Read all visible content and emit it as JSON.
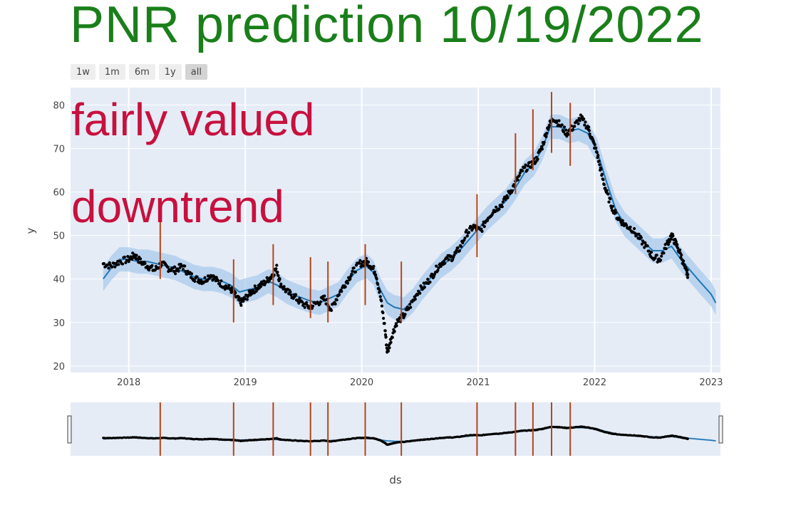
{
  "title": "PNR prediction 10/19/2022",
  "range_buttons": [
    {
      "label": "1w",
      "active": false
    },
    {
      "label": "1m",
      "active": false
    },
    {
      "label": "6m",
      "active": false
    },
    {
      "label": "1y",
      "active": false
    },
    {
      "label": "all",
      "active": true
    }
  ],
  "annotations": [
    "fairly valued",
    "downtrend"
  ],
  "colors": {
    "title": "#1a7f1a",
    "annotation": "#c8103e",
    "plot_bg": "#e5ecf6",
    "grid": "#ffffff",
    "forecast_line": "#1f77b4",
    "uncertainty_band": "#a9cbec",
    "actual_points": "#000000",
    "changepoints": "#b5441a"
  },
  "chart_data": {
    "type": "scatter",
    "xlabel": "ds",
    "ylabel": "y",
    "x_ticks": [
      "2018",
      "2019",
      "2020",
      "2021",
      "2022",
      "2023"
    ],
    "y_ticks": [
      20,
      30,
      40,
      50,
      60,
      70,
      80
    ],
    "xlim": [
      2017.5,
      2023.08
    ],
    "ylim": [
      18.5,
      84
    ],
    "grid": true,
    "legend": "none",
    "range_slider": true,
    "series": [
      {
        "kind": "actual",
        "style": "black markers",
        "points": [
          [
            2017.78,
            43.5
          ],
          [
            2017.85,
            43.0
          ],
          [
            2017.92,
            44.0
          ],
          [
            2018.0,
            44.5
          ],
          [
            2018.05,
            45.5
          ],
          [
            2018.1,
            44.0
          ],
          [
            2018.16,
            43.0
          ],
          [
            2018.22,
            42.0
          ],
          [
            2018.28,
            43.5
          ],
          [
            2018.34,
            42.5
          ],
          [
            2018.4,
            42.0
          ],
          [
            2018.46,
            43.0
          ],
          [
            2018.52,
            41.0
          ],
          [
            2018.58,
            40.0
          ],
          [
            2018.64,
            39.5
          ],
          [
            2018.7,
            41.0
          ],
          [
            2018.76,
            39.5
          ],
          [
            2018.82,
            38.5
          ],
          [
            2018.88,
            37.5
          ],
          [
            2018.92,
            36.0
          ],
          [
            2018.96,
            34.5
          ],
          [
            2019.0,
            35.5
          ],
          [
            2019.05,
            37.0
          ],
          [
            2019.1,
            38.0
          ],
          [
            2019.16,
            39.0
          ],
          [
            2019.22,
            40.5
          ],
          [
            2019.27,
            42.5
          ],
          [
            2019.3,
            39.0
          ],
          [
            2019.36,
            37.0
          ],
          [
            2019.42,
            36.0
          ],
          [
            2019.48,
            34.5
          ],
          [
            2019.55,
            33.5
          ],
          [
            2019.62,
            34.5
          ],
          [
            2019.68,
            35.5
          ],
          [
            2019.74,
            33.0
          ],
          [
            2019.8,
            36.5
          ],
          [
            2019.86,
            39.0
          ],
          [
            2019.92,
            41.5
          ],
          [
            2019.98,
            43.5
          ],
          [
            2020.04,
            44.0
          ],
          [
            2020.08,
            43.0
          ],
          [
            2020.12,
            41.5
          ],
          [
            2020.16,
            36.0
          ],
          [
            2020.2,
            28.5
          ],
          [
            2020.22,
            23.0
          ],
          [
            2020.26,
            27.0
          ],
          [
            2020.3,
            30.0
          ],
          [
            2020.36,
            31.5
          ],
          [
            2020.42,
            34.0
          ],
          [
            2020.48,
            37.0
          ],
          [
            2020.54,
            38.5
          ],
          [
            2020.6,
            40.5
          ],
          [
            2020.66,
            43.0
          ],
          [
            2020.72,
            44.5
          ],
          [
            2020.78,
            45.0
          ],
          [
            2020.84,
            47.0
          ],
          [
            2020.9,
            50.5
          ],
          [
            2020.96,
            52.0
          ],
          [
            2021.02,
            51.0
          ],
          [
            2021.08,
            54.0
          ],
          [
            2021.14,
            56.0
          ],
          [
            2021.2,
            57.0
          ],
          [
            2021.26,
            59.5
          ],
          [
            2021.32,
            62.0
          ],
          [
            2021.38,
            65.0
          ],
          [
            2021.44,
            66.0
          ],
          [
            2021.5,
            67.5
          ],
          [
            2021.55,
            70.5
          ],
          [
            2021.6,
            75.0
          ],
          [
            2021.65,
            77.0
          ],
          [
            2021.7,
            75.5
          ],
          [
            2021.76,
            73.5
          ],
          [
            2021.82,
            75.0
          ],
          [
            2021.88,
            77.0
          ],
          [
            2021.94,
            75.0
          ],
          [
            2021.98,
            72.0
          ],
          [
            2022.02,
            69.0
          ],
          [
            2022.06,
            64.0
          ],
          [
            2022.1,
            60.0
          ],
          [
            2022.15,
            56.5
          ],
          [
            2022.2,
            54.0
          ],
          [
            2022.26,
            52.5
          ],
          [
            2022.32,
            51.5
          ],
          [
            2022.38,
            49.5
          ],
          [
            2022.44,
            47.5
          ],
          [
            2022.5,
            45.0
          ],
          [
            2022.56,
            44.5
          ],
          [
            2022.62,
            48.0
          ],
          [
            2022.66,
            50.0
          ],
          [
            2022.7,
            48.0
          ],
          [
            2022.74,
            45.5
          ],
          [
            2022.78,
            42.0
          ],
          [
            2022.8,
            41.0
          ]
        ]
      },
      {
        "kind": "forecast",
        "style": "blue line",
        "points": [
          [
            2017.78,
            40.0
          ],
          [
            2017.85,
            42.5
          ],
          [
            2017.92,
            44.5
          ],
          [
            2018.0,
            44.5
          ],
          [
            2018.08,
            44.0
          ],
          [
            2018.16,
            44.0
          ],
          [
            2018.24,
            43.5
          ],
          [
            2018.32,
            43.0
          ],
          [
            2018.4,
            42.5
          ],
          [
            2018.48,
            41.5
          ],
          [
            2018.56,
            40.5
          ],
          [
            2018.64,
            40.0
          ],
          [
            2018.72,
            40.0
          ],
          [
            2018.8,
            39.5
          ],
          [
            2018.88,
            38.5
          ],
          [
            2018.95,
            37.0
          ],
          [
            2019.02,
            37.5
          ],
          [
            2019.1,
            38.0
          ],
          [
            2019.2,
            39.5
          ],
          [
            2019.28,
            38.5
          ],
          [
            2019.36,
            37.0
          ],
          [
            2019.45,
            36.0
          ],
          [
            2019.55,
            35.0
          ],
          [
            2019.64,
            34.5
          ],
          [
            2019.72,
            35.5
          ],
          [
            2019.8,
            36.5
          ],
          [
            2019.88,
            39.5
          ],
          [
            2019.96,
            42.0
          ],
          [
            2020.04,
            43.0
          ],
          [
            2020.1,
            41.5
          ],
          [
            2020.16,
            37.5
          ],
          [
            2020.22,
            34.5
          ],
          [
            2020.28,
            33.5
          ],
          [
            2020.36,
            33.0
          ],
          [
            2020.44,
            35.0
          ],
          [
            2020.52,
            38.0
          ],
          [
            2020.6,
            40.5
          ],
          [
            2020.68,
            43.0
          ],
          [
            2020.76,
            44.5
          ],
          [
            2020.84,
            46.5
          ],
          [
            2020.92,
            49.0
          ],
          [
            2021.0,
            51.5
          ],
          [
            2021.08,
            54.0
          ],
          [
            2021.16,
            56.0
          ],
          [
            2021.24,
            58.0
          ],
          [
            2021.32,
            61.0
          ],
          [
            2021.4,
            64.5
          ],
          [
            2021.48,
            66.5
          ],
          [
            2021.55,
            70.0
          ],
          [
            2021.62,
            75.0
          ],
          [
            2021.7,
            75.0
          ],
          [
            2021.78,
            74.0
          ],
          [
            2021.86,
            74.5
          ],
          [
            2021.94,
            73.5
          ],
          [
            2022.02,
            69.5
          ],
          [
            2022.1,
            62.5
          ],
          [
            2022.18,
            56.0
          ],
          [
            2022.26,
            52.5
          ],
          [
            2022.34,
            50.5
          ],
          [
            2022.42,
            48.5
          ],
          [
            2022.5,
            46.5
          ],
          [
            2022.58,
            46.5
          ],
          [
            2022.66,
            47.5
          ],
          [
            2022.74,
            44.5
          ],
          [
            2022.82,
            42.0
          ],
          [
            2022.9,
            39.5
          ],
          [
            2023.0,
            36.5
          ],
          [
            2023.04,
            34.5
          ]
        ]
      }
    ],
    "uncertainty_halfwidth": 2.8,
    "changepoints": [
      {
        "x": 2018.27,
        "ymin": 40.0,
        "ymax": 54.0
      },
      {
        "x": 2018.9,
        "ymin": 30.0,
        "ymax": 44.5
      },
      {
        "x": 2019.24,
        "ymin": 34.0,
        "ymax": 48.0
      },
      {
        "x": 2019.56,
        "ymin": 31.0,
        "ymax": 45.0
      },
      {
        "x": 2019.71,
        "ymin": 30.0,
        "ymax": 44.0
      },
      {
        "x": 2020.03,
        "ymin": 34.0,
        "ymax": 48.0
      },
      {
        "x": 2020.34,
        "ymin": 30.0,
        "ymax": 44.0
      },
      {
        "x": 2020.99,
        "ymin": 45.0,
        "ymax": 59.5
      },
      {
        "x": 2021.32,
        "ymin": 59.5,
        "ymax": 73.5
      },
      {
        "x": 2021.47,
        "ymin": 65.0,
        "ymax": 79.0
      },
      {
        "x": 2021.63,
        "ymin": 69.0,
        "ymax": 83.0
      },
      {
        "x": 2021.79,
        "ymin": 66.0,
        "ymax": 80.5
      }
    ]
  }
}
